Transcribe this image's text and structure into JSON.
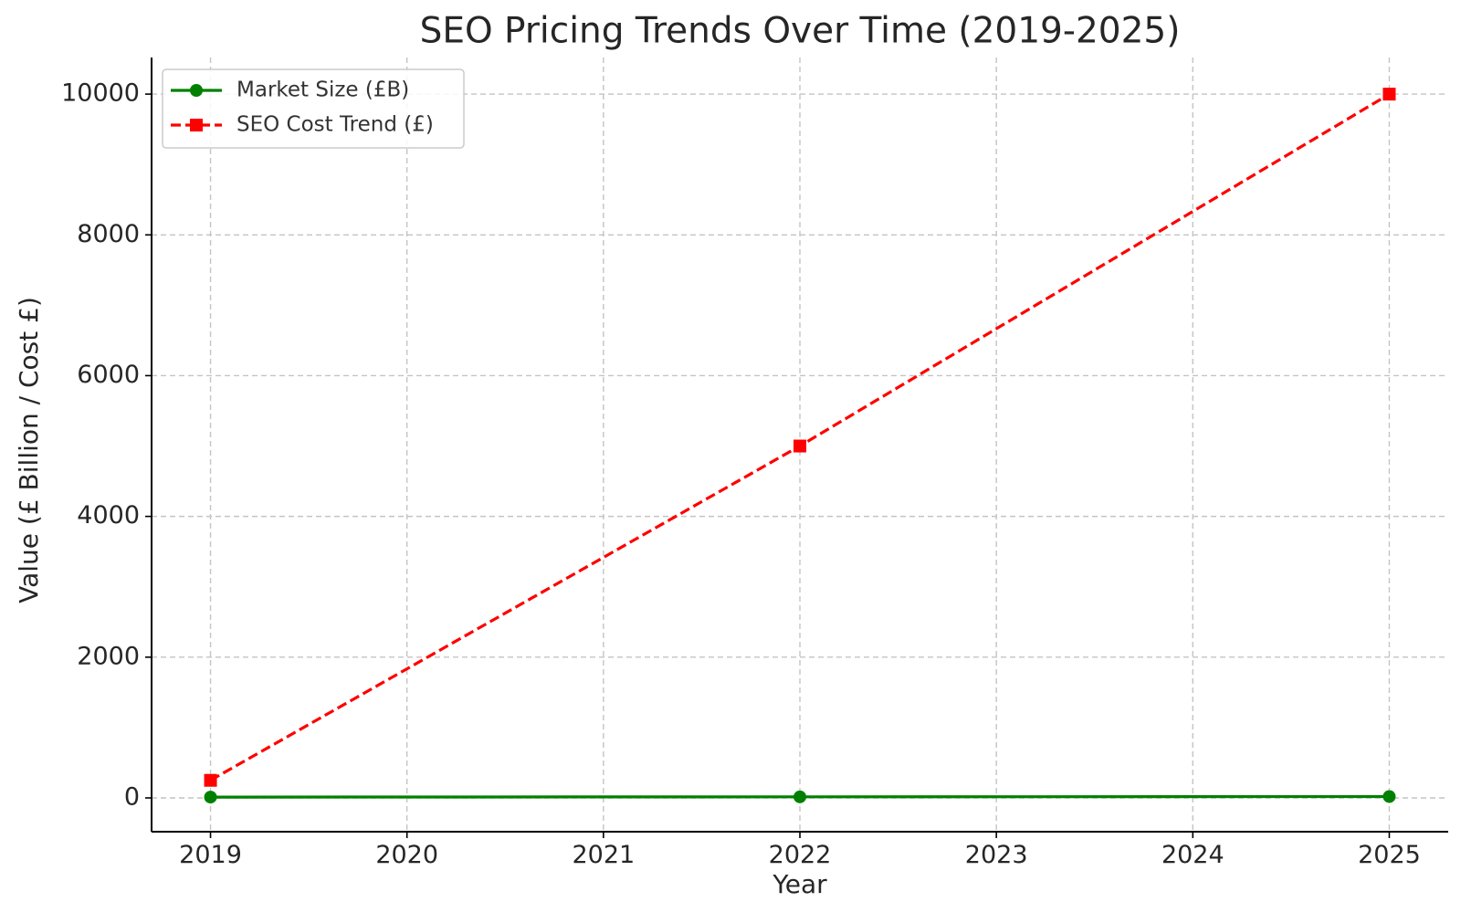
{
  "chart_data": {
    "type": "line",
    "title": "SEO Pricing Trends Over Time (2019-2025)",
    "xlabel": "Year",
    "ylabel": "Value (£ Billion / Cost £)",
    "x": [
      2019,
      2022,
      2025
    ],
    "x_ticks": [
      2019,
      2020,
      2021,
      2022,
      2023,
      2024,
      2025
    ],
    "y_ticks": [
      0,
      2000,
      4000,
      6000,
      8000,
      10000
    ],
    "xlim": [
      2018.7,
      2025.3
    ],
    "ylim": [
      -480,
      10520
    ],
    "grid": true,
    "legend_position": "top-left",
    "series": [
      {
        "name": "Market Size (£B)",
        "values": [
          12,
          15,
          20
        ],
        "color": "#008000",
        "line_style": "solid",
        "marker": "circle"
      },
      {
        "name": "SEO Cost Trend (£)",
        "values": [
          250,
          5000,
          10000
        ],
        "color": "#ff0000",
        "line_style": "dashed",
        "marker": "square"
      }
    ]
  }
}
